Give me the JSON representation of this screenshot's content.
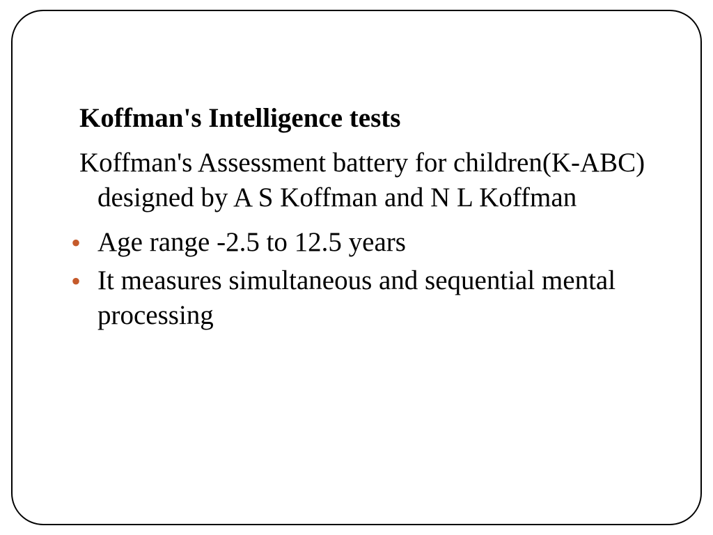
{
  "slide": {
    "title": "Koffman's Intelligence tests",
    "subtitle": "Koffman's Assessment battery for children(K-ABC) designed by A S Koffman and N L Koffman",
    "bullets": [
      "Age range -2.5 to 12.5 years",
      "It measures simultaneous and sequential mental processing"
    ],
    "styling": {
      "frame_border_color": "#000000",
      "frame_border_width": 2,
      "frame_border_radius": 46,
      "background_color": "#ffffff",
      "title_font_size": 39,
      "title_font_weight": "bold",
      "body_font_size": 39,
      "bullet_color": "#c55a2b",
      "text_color": "#000000",
      "font_family": "Garamond"
    }
  }
}
